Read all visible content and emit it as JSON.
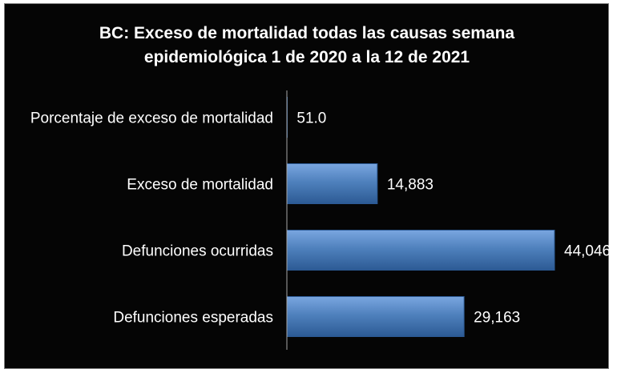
{
  "chart_data": {
    "type": "bar",
    "orientation": "horizontal",
    "title_lines": [
      "BC: Exceso de mortalidad todas las causas semana",
      "epidemiológica 1 de 2020 a la 12 de 2021"
    ],
    "categories": [
      "Porcentaje de exceso de mortalidad",
      "Exceso de mortalidad",
      "Defunciones ocurridas",
      "Defunciones esperadas"
    ],
    "values": [
      51.0,
      14883,
      44046,
      29163
    ],
    "data_labels": [
      "51.0",
      "14,883",
      "44,046",
      "29,163"
    ],
    "xlim": [
      0,
      44046
    ],
    "grid": false,
    "legend": "none",
    "colors": {
      "background": "#050505",
      "bar_fill": "#4f81bd",
      "bar_fill_light": "#7aa6e0",
      "bar_fill_dark": "#2c5a94",
      "text": "#ffffff",
      "axis": "#a6a6a6",
      "border": "#7f7f7f"
    }
  }
}
